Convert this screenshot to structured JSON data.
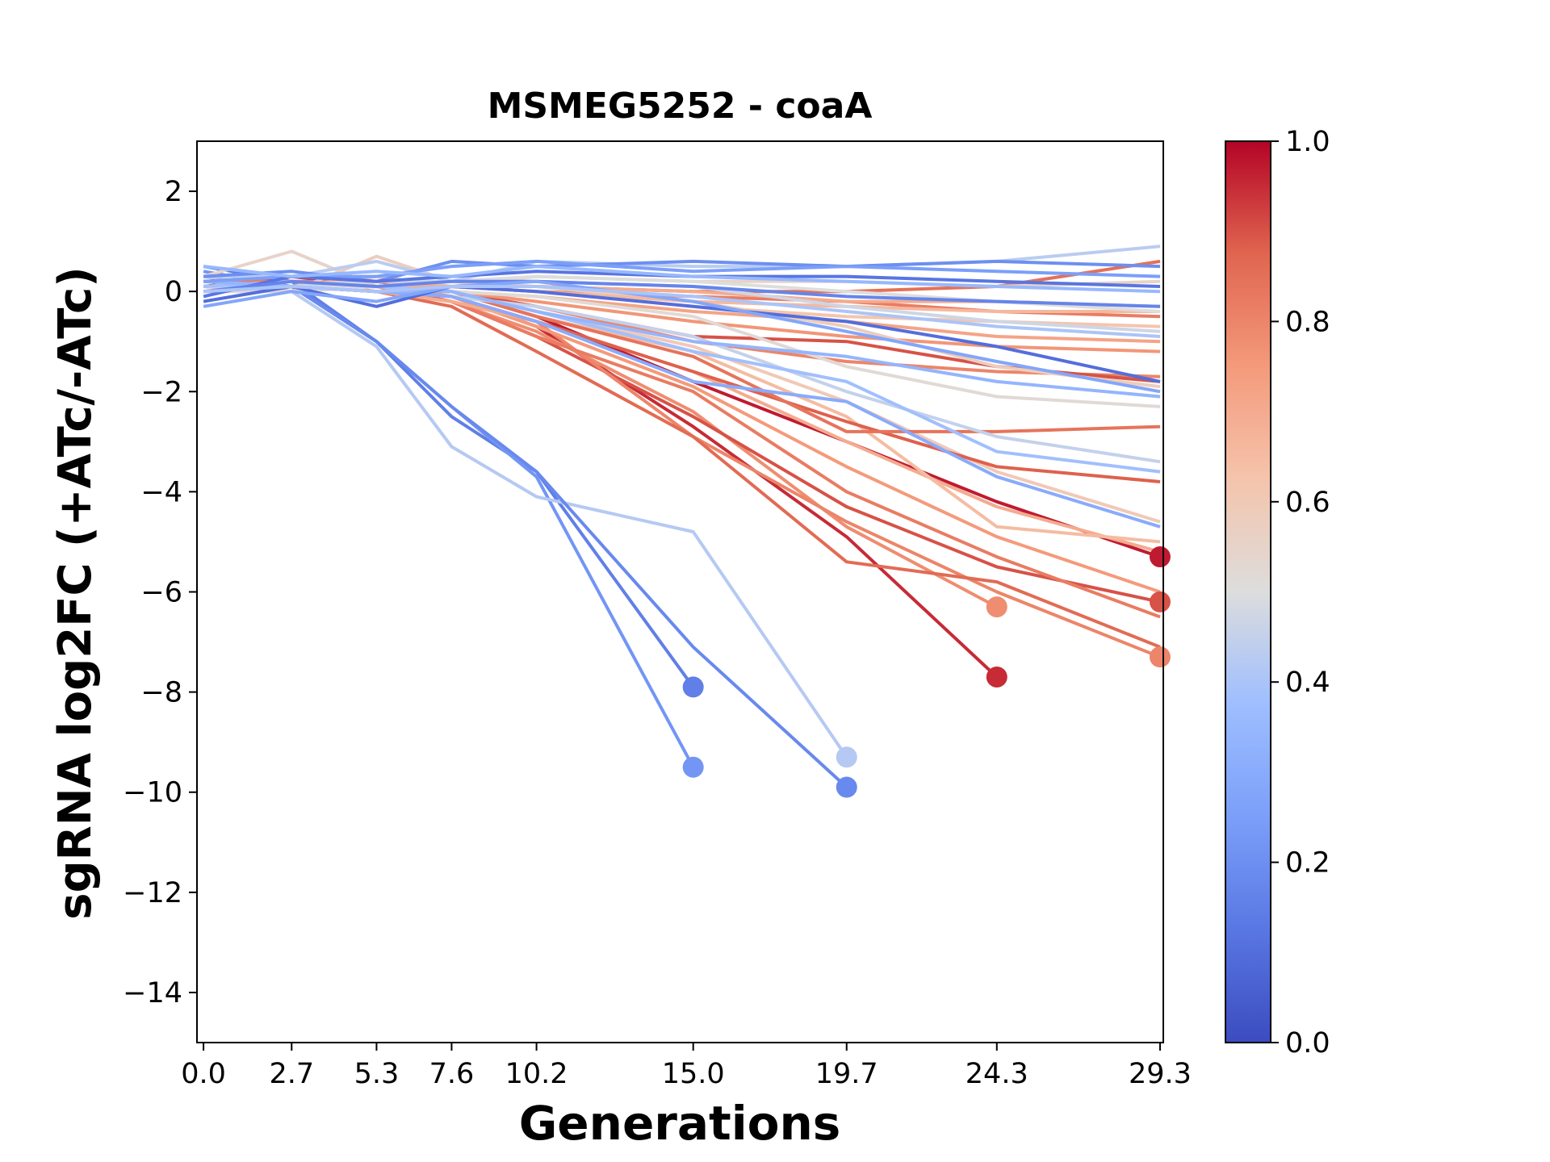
{
  "chart_data": {
    "type": "line",
    "title": "MSMEG5252 - coaA",
    "xlabel": "Generations",
    "ylabel": "sgRNA log2FC (+ATc/-ATc)",
    "x_ticks": [
      0.0,
      2.7,
      5.3,
      7.6,
      10.2,
      15.0,
      19.7,
      24.3,
      29.3
    ],
    "x_tick_labels": [
      "0.0",
      "2.7",
      "5.3",
      "7.6",
      "10.2",
      "15.0",
      "19.7",
      "24.3",
      "29.3"
    ],
    "y_ticks": [
      2,
      0,
      -2,
      -4,
      -6,
      -8,
      -10,
      -12,
      -14
    ],
    "y_tick_labels": [
      "2",
      "0",
      "−2",
      "−4",
      "−6",
      "−8",
      "−10",
      "−12",
      "−14"
    ],
    "xlim": [
      -0.2,
      29.4
    ],
    "ylim": [
      -15,
      3
    ],
    "grid": false,
    "colormap": "coolwarm",
    "colorbar": {
      "range": [
        0.0,
        1.0
      ],
      "ticks": [
        0.0,
        0.2,
        0.4,
        0.6,
        0.8,
        1.0
      ],
      "tick_labels": [
        "0.0",
        "0.2",
        "0.4",
        "0.6",
        "0.8",
        "1.0"
      ]
    },
    "endpoint_marker": "circle at last time point of lines that drop out",
    "series": [
      {
        "c": 0.15,
        "values": [
          0.5,
          0.2,
          -1.0,
          -2.5,
          -3.6,
          -7.9
        ],
        "endpoint": true
      },
      {
        "c": 0.22,
        "values": [
          0.4,
          0.1,
          -1.0,
          -2.3,
          -3.7,
          -9.5
        ],
        "endpoint": true
      },
      {
        "c": 0.42,
        "values": [
          0.3,
          0.0,
          -1.1,
          -3.1,
          -4.1,
          -4.8,
          -9.3
        ],
        "endpoint": true
      },
      {
        "c": 0.18,
        "values": [
          0.2,
          0.1,
          -1.0,
          -2.3,
          -3.6,
          -7.1,
          -9.9
        ],
        "endpoint": true
      },
      {
        "c": 0.95,
        "values": [
          0.1,
          0.3,
          0.1,
          -0.1,
          -0.7,
          -2.7,
          -4.9,
          -7.7
        ],
        "endpoint": true
      },
      {
        "c": 0.78,
        "values": [
          0.2,
          0.1,
          0.0,
          -0.2,
          -0.8,
          -2.4,
          -4.7,
          -6.3
        ],
        "endpoint": true
      },
      {
        "c": 0.97,
        "values": [
          0.2,
          0.3,
          0.2,
          0.0,
          -0.5,
          -1.8,
          -3.0,
          -4.2,
          -5.3
        ],
        "endpoint": true
      },
      {
        "c": 0.9,
        "values": [
          0.1,
          0.2,
          0.1,
          -0.2,
          -0.9,
          -2.5,
          -4.3,
          -5.5,
          -6.2
        ],
        "endpoint": true
      },
      {
        "c": 0.8,
        "values": [
          0.0,
          0.1,
          0.0,
          -0.1,
          -0.6,
          -2.9,
          -4.6,
          -6.0,
          -7.3
        ],
        "endpoint": true
      },
      {
        "c": 0.86,
        "values": [
          0.1,
          0.2,
          0.0,
          -0.3,
          -1.2,
          -2.9,
          -5.4,
          -5.8,
          -7.1
        ]
      },
      {
        "c": 0.82,
        "values": [
          0.0,
          0.1,
          0.0,
          -0.2,
          -0.9,
          -2.0,
          -4.0,
          -5.3,
          -6.5
        ]
      },
      {
        "c": 0.75,
        "values": [
          0.1,
          0.0,
          0.1,
          -0.1,
          -0.7,
          -1.9,
          -3.5,
          -4.9,
          -6.0
        ]
      },
      {
        "c": 0.7,
        "values": [
          0.0,
          0.1,
          0.0,
          -0.2,
          -0.6,
          -1.6,
          -3.0,
          -4.3,
          -5.2
        ]
      },
      {
        "c": 0.65,
        "values": [
          0.2,
          0.1,
          0.0,
          0.0,
          -0.5,
          -1.2,
          -2.5,
          -4.7,
          -5.0
        ]
      },
      {
        "c": 0.6,
        "values": [
          0.1,
          0.0,
          0.1,
          0.0,
          -0.4,
          -1.1,
          -2.2,
          -3.6,
          -4.6
        ]
      },
      {
        "c": 0.88,
        "values": [
          0.1,
          0.1,
          0.0,
          -0.1,
          -0.6,
          -1.6,
          -2.6,
          -3.5,
          -3.8
        ]
      },
      {
        "c": 0.84,
        "values": [
          0.0,
          0.1,
          0.0,
          0.0,
          -0.5,
          -1.3,
          -2.8,
          -2.8,
          -2.7
        ]
      },
      {
        "c": 0.8,
        "values": [
          0.2,
          0.2,
          0.1,
          0.0,
          -0.3,
          -1.0,
          -1.4,
          -1.6,
          -1.7
        ]
      },
      {
        "c": 0.9,
        "values": [
          0.1,
          0.1,
          0.0,
          0.0,
          -0.3,
          -0.9,
          -1.0,
          -1.5,
          -1.8
        ]
      },
      {
        "c": 0.76,
        "values": [
          0.1,
          0.2,
          0.0,
          0.0,
          -0.2,
          -0.6,
          -0.9,
          -1.1,
          -1.2
        ]
      },
      {
        "c": 0.72,
        "values": [
          0.0,
          0.1,
          0.1,
          0.0,
          -0.1,
          -0.4,
          -0.6,
          -0.9,
          -1.0
        ]
      },
      {
        "c": 0.82,
        "values": [
          0.2,
          0.2,
          0.2,
          0.1,
          0.0,
          -0.1,
          -0.2,
          -0.4,
          -0.5
        ]
      },
      {
        "c": 0.85,
        "values": [
          0.1,
          0.1,
          0.2,
          0.1,
          0.1,
          0.0,
          0.0,
          0.1,
          0.6
        ]
      },
      {
        "c": 0.55,
        "values": [
          0.3,
          0.8,
          0.1,
          0.1,
          0.3,
          0.2,
          0.2,
          0.1,
          0.2
        ]
      },
      {
        "c": 0.58,
        "values": [
          0.1,
          0.0,
          0.7,
          0.2,
          0.1,
          -0.2,
          -0.7,
          -1.5,
          -1.9
        ]
      },
      {
        "c": 0.62,
        "values": [
          0.0,
          0.1,
          0.3,
          0.1,
          0.0,
          -0.3,
          -0.5,
          -0.6,
          -0.7
        ]
      },
      {
        "c": 0.66,
        "values": [
          0.1,
          0.0,
          0.2,
          0.1,
          0.0,
          -0.2,
          -0.3,
          -0.4,
          -0.4
        ]
      },
      {
        "c": 0.7,
        "values": [
          0.0,
          0.1,
          0.1,
          0.1,
          0.1,
          0.0,
          -0.2,
          -0.2,
          -0.3
        ]
      },
      {
        "c": 0.5,
        "values": [
          0.1,
          0.1,
          0.1,
          0.2,
          0.3,
          0.2,
          0.0,
          -0.2,
          -0.4
        ]
      },
      {
        "c": 0.47,
        "values": [
          0.2,
          0.1,
          0.2,
          0.2,
          0.2,
          0.1,
          -0.3,
          -0.6,
          -0.8
        ]
      },
      {
        "c": 0.52,
        "values": [
          0.0,
          0.0,
          0.1,
          0.0,
          -0.1,
          -0.5,
          -1.5,
          -2.1,
          -2.3
        ]
      },
      {
        "c": 0.45,
        "values": [
          0.1,
          0.1,
          0.0,
          -0.1,
          -0.3,
          -0.9,
          -2.0,
          -2.9,
          -3.4
        ]
      },
      {
        "c": 0.38,
        "values": [
          0.1,
          0.2,
          0.1,
          0.0,
          -0.4,
          -1.2,
          -1.8,
          -3.2,
          -3.6
        ]
      },
      {
        "c": 0.3,
        "values": [
          0.0,
          0.1,
          0.0,
          -0.1,
          -0.6,
          -1.8,
          -2.2,
          -3.7,
          -4.7
        ]
      },
      {
        "c": 0.34,
        "values": [
          0.2,
          0.1,
          0.0,
          0.0,
          -0.4,
          -1.0,
          -1.3,
          -1.8,
          -2.1
        ]
      },
      {
        "c": 0.43,
        "values": [
          0.3,
          0.3,
          0.6,
          0.2,
          0.6,
          0.5,
          0.5,
          0.6,
          0.9
        ]
      },
      {
        "c": 0.2,
        "values": [
          0.3,
          0.4,
          0.2,
          0.6,
          0.5,
          0.6,
          0.5,
          0.6,
          0.5
        ]
      },
      {
        "c": 0.25,
        "values": [
          0.2,
          0.3,
          0.3,
          0.5,
          0.6,
          0.4,
          0.5,
          0.4,
          0.3
        ]
      },
      {
        "c": 0.12,
        "values": [
          -0.1,
          0.3,
          0.2,
          0.3,
          0.4,
          0.3,
          0.3,
          0.2,
          0.1
        ]
      },
      {
        "c": 0.17,
        "values": [
          0.0,
          0.2,
          0.1,
          0.2,
          0.2,
          0.1,
          -0.1,
          -0.2,
          -0.3
        ]
      },
      {
        "c": 0.1,
        "values": [
          -0.2,
          0.1,
          -0.3,
          0.1,
          0.0,
          -0.3,
          -0.6,
          -1.1,
          -1.8
        ]
      },
      {
        "c": 0.28,
        "values": [
          -0.3,
          0.0,
          -0.2,
          0.1,
          0.2,
          -0.2,
          -0.8,
          -1.4,
          -2.0
        ]
      },
      {
        "c": 0.35,
        "values": [
          0.5,
          0.3,
          0.4,
          0.3,
          0.5,
          0.3,
          0.2,
          0.1,
          0.0
        ]
      },
      {
        "c": 0.4,
        "values": [
          0.0,
          0.1,
          0.0,
          0.1,
          0.1,
          -0.1,
          -0.4,
          -0.7,
          -0.9
        ]
      }
    ]
  }
}
